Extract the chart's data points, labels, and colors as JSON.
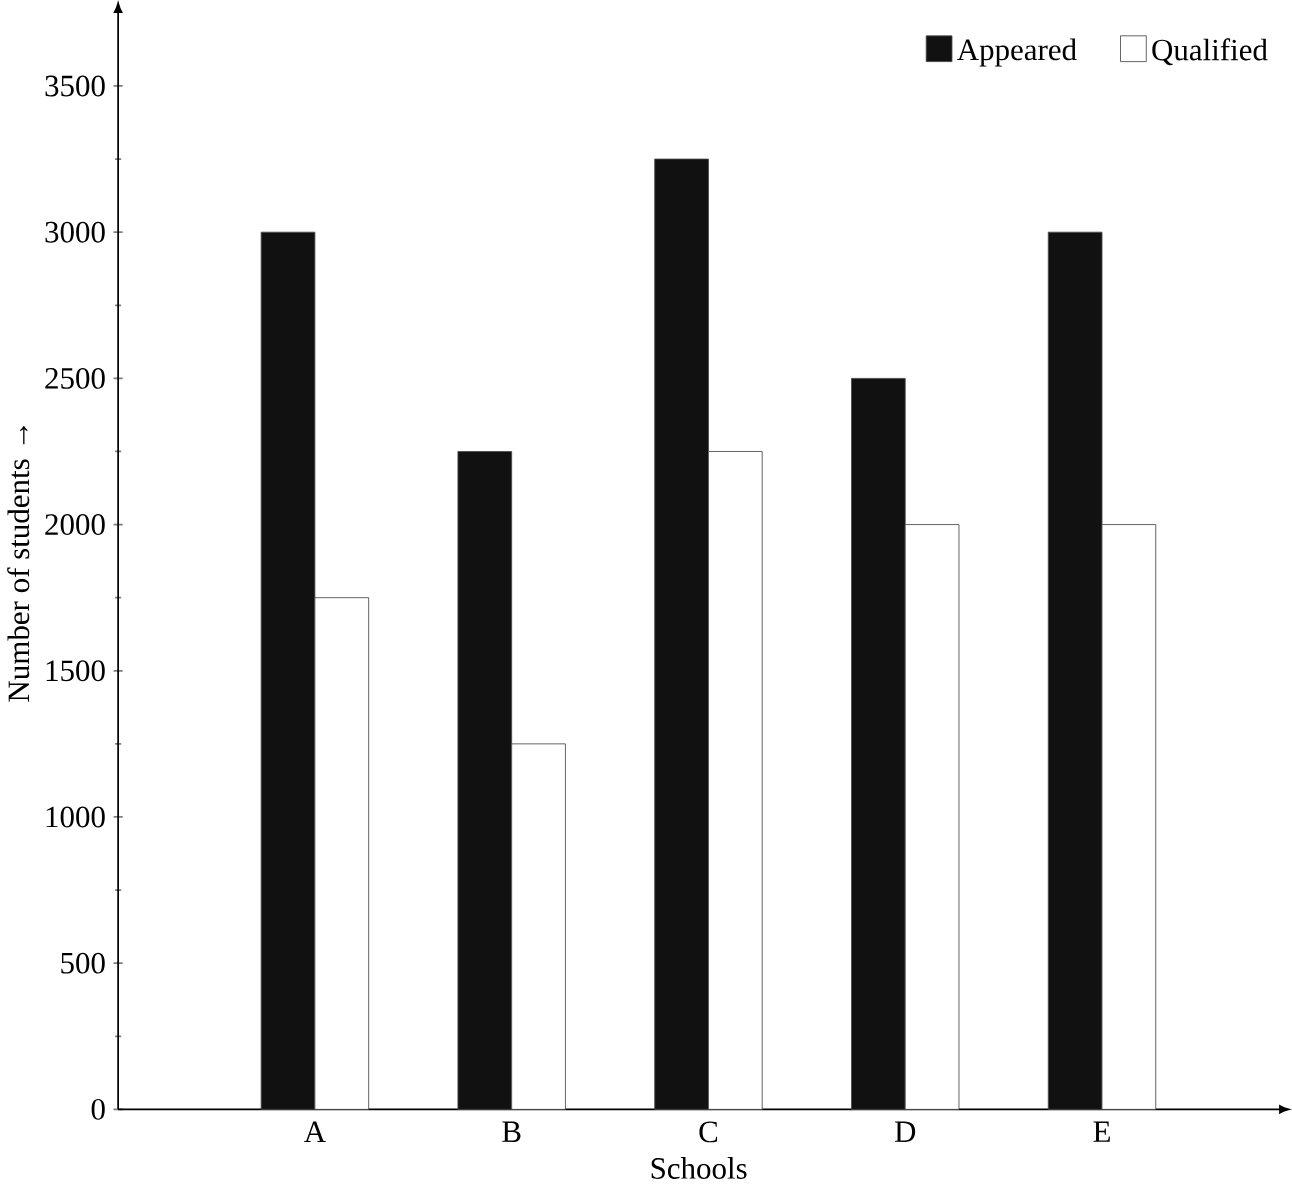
{
  "chart_data": {
    "type": "bar",
    "xlabel": "Schools",
    "ylabel": "Number of students →",
    "categories": [
      "A",
      "B",
      "C",
      "D",
      "E"
    ],
    "series": [
      {
        "name": "Appeared",
        "color": "#111111",
        "values": [
          3000,
          2250,
          3250,
          2500,
          3000
        ]
      },
      {
        "name": "Qualified",
        "color": "#ffffff",
        "values": [
          1750,
          1250,
          2250,
          2000,
          2000
        ]
      }
    ],
    "ylim": [
      0,
      3750
    ],
    "yticks": [
      0,
      500,
      1000,
      1500,
      2000,
      2500,
      3000,
      3500
    ],
    "grid": false,
    "legend": "top right"
  }
}
